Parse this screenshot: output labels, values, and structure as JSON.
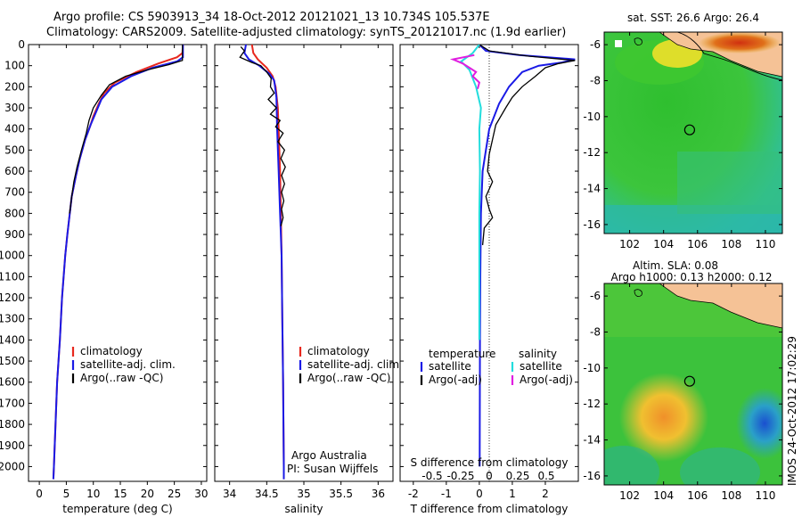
{
  "header": {
    "line1": "Argo profile: CS 5903913_34 18-Oct-2012 20121021_13 10.734S 105.537E",
    "line2": "Climatology: CARS2009. Satellite-adjusted climatology: synTS_20121017.nc (1.9d earlier)"
  },
  "side_stamp": "IMOS 24-Oct-2012 17:02:29",
  "colors": {
    "climatology": "#e8281e",
    "satellite": "#1a1ae6",
    "argo": "#000000",
    "sal_satellite": "#22dddd",
    "sal_argo": "#e01ee0"
  },
  "chart_data": [
    {
      "type": "line",
      "ylabel": "",
      "xlabel": "temperature (deg C)",
      "xlim": [
        -2,
        31
      ],
      "ylim": [
        2070,
        0
      ],
      "x_ticks": [
        "0",
        "5",
        "10",
        "15",
        "20",
        "25",
        "30"
      ],
      "y_ticks": [
        "0",
        "100",
        "200",
        "300",
        "400",
        "500",
        "600",
        "700",
        "800",
        "900",
        "1000",
        "1100",
        "1200",
        "1300",
        "1400",
        "1500",
        "1600",
        "1700",
        "1800",
        "1900",
        "2000"
      ],
      "legend": {
        "items": [
          "climatology",
          "satellite-adj. clim.",
          "Argo(..raw -QC)"
        ]
      },
      "series": [
        {
          "name": "climatology",
          "color": "#e8281e",
          "points": [
            [
              26.6,
              0
            ],
            [
              26.5,
              40
            ],
            [
              25.5,
              60
            ],
            [
              22,
              90
            ],
            [
              18,
              130
            ],
            [
              14,
              180
            ],
            [
              12,
              230
            ],
            [
              11,
              280
            ],
            [
              10,
              340
            ],
            [
              9.5,
              380
            ],
            [
              8.5,
              450
            ],
            [
              7.5,
              540
            ],
            [
              6.8,
              620
            ],
            [
              6,
              720
            ],
            [
              5.2,
              900
            ],
            [
              4.8,
              1000
            ],
            [
              4.2,
              1200
            ],
            [
              3.8,
              1400
            ],
            [
              3.3,
              1600
            ],
            [
              3,
              1800
            ],
            [
              2.7,
              2000
            ],
            [
              2.6,
              2060
            ]
          ]
        },
        {
          "name": "satellite-adj. clim.",
          "color": "#1a1ae6",
          "points": [
            [
              26.6,
              0
            ],
            [
              26.6,
              60
            ],
            [
              25.5,
              80
            ],
            [
              21,
              110
            ],
            [
              17,
              150
            ],
            [
              13.5,
              200
            ],
            [
              11.5,
              260
            ],
            [
              10.5,
              320
            ],
            [
              9.5,
              380
            ],
            [
              8.5,
              450
            ],
            [
              7.5,
              540
            ],
            [
              6.8,
              620
            ],
            [
              6,
              720
            ],
            [
              5.2,
              900
            ],
            [
              4.8,
              1000
            ],
            [
              4.2,
              1200
            ],
            [
              3.8,
              1400
            ],
            [
              3.3,
              1600
            ],
            [
              3,
              1800
            ],
            [
              2.7,
              2000
            ],
            [
              2.6,
              2060
            ]
          ]
        },
        {
          "name": "Argo(..raw -QC)",
          "color": "#000000",
          "points": [
            [
              26.5,
              0
            ],
            [
              26.5,
              75
            ],
            [
              24,
              95
            ],
            [
              20,
              120
            ],
            [
              16,
              150
            ],
            [
              13,
              190
            ],
            [
              11.5,
              240
            ],
            [
              10,
              300
            ],
            [
              9.2,
              360
            ],
            [
              8.7,
              420
            ],
            [
              7.8,
              500
            ],
            [
              7,
              580
            ],
            [
              6.4,
              650
            ],
            [
              6,
              720
            ],
            [
              5.6,
              800
            ]
          ]
        }
      ]
    },
    {
      "type": "line",
      "xlabel": "salinity",
      "xlim": [
        33.8,
        36.2
      ],
      "ylim": [
        2070,
        0
      ],
      "x_ticks": [
        "34",
        "34.5",
        "35",
        "35.5",
        "36"
      ],
      "legend": {
        "items": [
          "climatology",
          "satellite-adj. clim.",
          "Argo(..raw -QC)"
        ]
      },
      "annotation": [
        "Argo Australia",
        "PI: Susan Wijffels"
      ],
      "series": [
        {
          "name": "climatology",
          "color": "#e8281e",
          "points": [
            [
              34.3,
              0
            ],
            [
              34.32,
              40
            ],
            [
              34.38,
              70
            ],
            [
              34.5,
              110
            ],
            [
              34.58,
              150
            ],
            [
              34.62,
              200
            ],
            [
              34.65,
              300
            ],
            [
              34.66,
              400
            ],
            [
              34.68,
              600
            ],
            [
              34.69,
              800
            ],
            [
              34.7,
              1000
            ],
            [
              34.71,
              1300
            ],
            [
              34.72,
              1600
            ],
            [
              34.73,
              2000
            ],
            [
              34.73,
              2060
            ]
          ]
        },
        {
          "name": "satellite-adj. clim.",
          "color": "#1a1ae6",
          "points": [
            [
              34.22,
              0
            ],
            [
              34.2,
              40
            ],
            [
              34.26,
              70
            ],
            [
              34.4,
              100
            ],
            [
              34.54,
              140
            ],
            [
              34.6,
              170
            ],
            [
              34.63,
              250
            ],
            [
              34.64,
              400
            ],
            [
              34.66,
              600
            ],
            [
              34.68,
              800
            ],
            [
              34.7,
              1000
            ],
            [
              34.71,
              1300
            ],
            [
              34.72,
              1600
            ],
            [
              34.73,
              2000
            ],
            [
              34.73,
              2060
            ]
          ]
        },
        {
          "name": "Argo(..raw -QC)",
          "color": "#000000",
          "points": [
            [
              34.15,
              10
            ],
            [
              34.2,
              30
            ],
            [
              34.14,
              60
            ],
            [
              34.3,
              85
            ],
            [
              34.42,
              100
            ],
            [
              34.5,
              130
            ],
            [
              34.56,
              160
            ],
            [
              34.55,
              200
            ],
            [
              34.6,
              230
            ],
            [
              34.52,
              260
            ],
            [
              34.63,
              300
            ],
            [
              34.55,
              330
            ],
            [
              34.68,
              360
            ],
            [
              34.62,
              390
            ],
            [
              34.72,
              420
            ],
            [
              34.65,
              460
            ],
            [
              34.74,
              500
            ],
            [
              34.69,
              540
            ],
            [
              34.75,
              580
            ],
            [
              34.7,
              620
            ],
            [
              34.74,
              660
            ],
            [
              34.7,
              700
            ],
            [
              34.73,
              740
            ],
            [
              34.7,
              780
            ],
            [
              34.72,
              820
            ],
            [
              34.69,
              860
            ]
          ]
        }
      ]
    },
    {
      "type": "line",
      "xlabel": "T difference from climatology",
      "x_axis_top_label": "S difference from climatology",
      "xlim": [
        -2.4,
        3.0
      ],
      "ylim": [
        2070,
        0
      ],
      "x_ticks": [
        "-2",
        "-1",
        "0",
        "1",
        "2"
      ],
      "s_ticks": [
        "-0.5",
        "-0.25",
        "0",
        "0.25",
        "0.5"
      ],
      "legend": {
        "temperature_header": "temperature",
        "salinity_header": "salinity",
        "items": [
          "satellite",
          "Argo(-adj)",
          "satellite",
          "Argo(-adj)"
        ]
      },
      "series": [
        {
          "name": "satellite",
          "color": "#1a1ae6",
          "points": [
            [
              0,
              0
            ],
            [
              0.2,
              30
            ],
            [
              1.2,
              50
            ],
            [
              2.9,
              70
            ],
            [
              2.5,
              85
            ],
            [
              1.8,
              100
            ],
            [
              1.3,
              130
            ],
            [
              0.9,
              200
            ],
            [
              0.6,
              280
            ],
            [
              0.3,
              400
            ],
            [
              0.1,
              600
            ],
            [
              0.05,
              800
            ],
            [
              0.03,
              1100
            ],
            [
              0.02,
              1400
            ],
            [
              0.01,
              2000
            ]
          ]
        },
        {
          "name": "Argo(-adj)",
          "color": "#000000",
          "points": [
            [
              0,
              0
            ],
            [
              0.3,
              30
            ],
            [
              1.5,
              55
            ],
            [
              2.9,
              75
            ],
            [
              2.4,
              90
            ],
            [
              2,
              110
            ],
            [
              1.7,
              150
            ],
            [
              1.3,
              200
            ],
            [
              1,
              250
            ],
            [
              0.8,
              300
            ],
            [
              0.5,
              380
            ],
            [
              0.4,
              450
            ],
            [
              0.3,
              520
            ],
            [
              0.25,
              600
            ],
            [
              0.4,
              650
            ],
            [
              0.2,
              720
            ],
            [
              0.3,
              780
            ],
            [
              0.4,
              820
            ],
            [
              0.15,
              870
            ],
            [
              0.1,
              950
            ]
          ]
        },
        {
          "name": "satellite",
          "color": "#22dddd",
          "points": [
            [
              0,
              0
            ],
            [
              -0.2,
              40
            ],
            [
              -0.55,
              80
            ],
            [
              -0.3,
              120
            ],
            [
              -0.1,
              200
            ],
            [
              0.05,
              300
            ],
            [
              0,
              400
            ],
            [
              0.02,
              600
            ],
            [
              0,
              800
            ],
            [
              0,
              1000
            ],
            [
              0,
              1400
            ]
          ]
        },
        {
          "name": "Argo(-adj)",
          "color": "#e01ee0",
          "points": [
            [
              -0.15,
              50
            ],
            [
              -0.8,
              70
            ],
            [
              -0.5,
              90
            ],
            [
              -0.3,
              110
            ],
            [
              -0.1,
              130
            ],
            [
              -0.2,
              150
            ],
            [
              0,
              180
            ],
            [
              -0.05,
              210
            ]
          ]
        }
      ]
    },
    {
      "type": "heatmap",
      "title": "sat. SST: 26.6  Argo: 26.4",
      "x_ticks": [
        "102",
        "104",
        "106",
        "108",
        "110"
      ],
      "y_ticks": [
        "-6",
        "-8",
        "-10",
        "-12",
        "-14",
        "-16"
      ],
      "xlim": [
        100.5,
        111
      ],
      "ylim": [
        -16.5,
        -5.3
      ],
      "marker": {
        "lon": 105.537,
        "lat": -10.734
      }
    },
    {
      "type": "heatmap",
      "title": "Altim. SLA: 0.08",
      "subtitle": "Argo h1000: 0.13  h2000: 0.12",
      "x_ticks": [
        "102",
        "104",
        "106",
        "108",
        "110"
      ],
      "y_ticks": [
        "-6",
        "-8",
        "-10",
        "-12",
        "-14",
        "-16"
      ],
      "xlim": [
        100.5,
        111
      ],
      "ylim": [
        -16.5,
        -5.3
      ],
      "marker": {
        "lon": 105.537,
        "lat": -10.734
      }
    }
  ]
}
